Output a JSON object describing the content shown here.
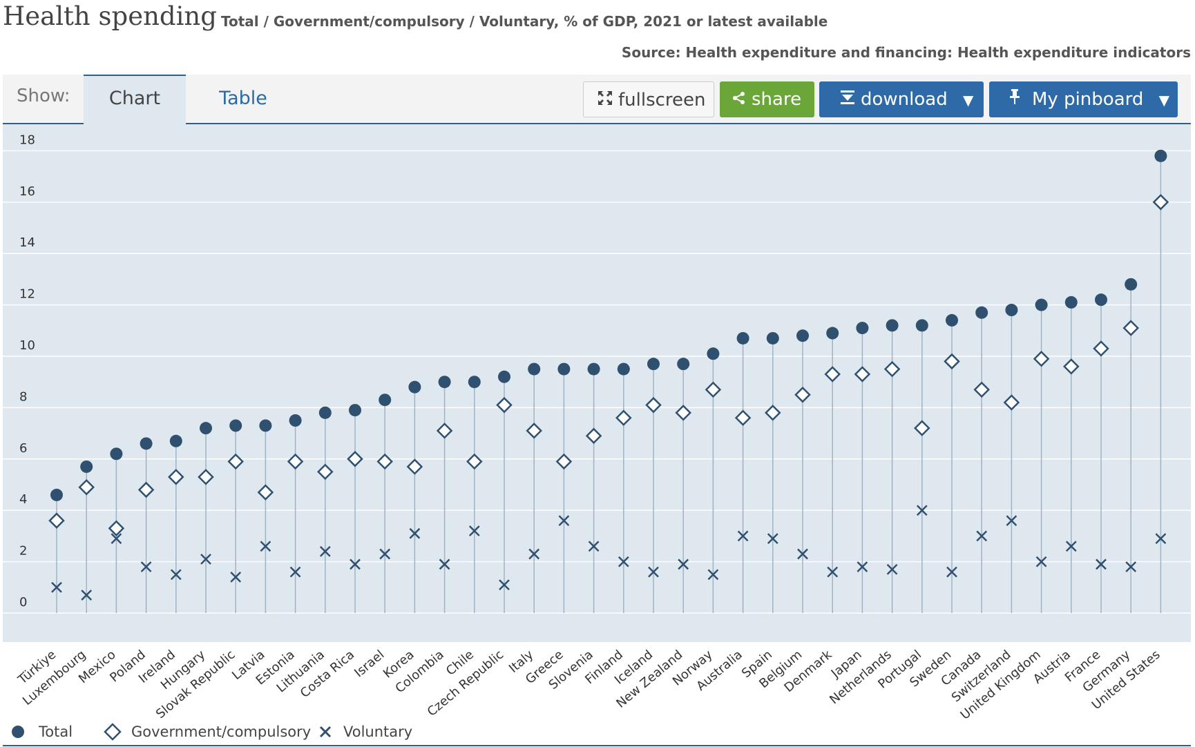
{
  "title": "Health spending",
  "subtitle": "Total / Government/compulsory / Voluntary, % of GDP, 2021 or latest available",
  "source": "Source: Health expenditure and financing: Health expenditure indicators",
  "toolbar": {
    "show_label": "Show:",
    "tab_chart": "Chart",
    "tab_table": "Table",
    "fullscreen_label": "fullscreen",
    "share_label": "share",
    "download_label": "download",
    "pinboard_label": "My pinboard",
    "dropdown_arrow": "▼",
    "icons": {
      "fullscreen": "expand-icon",
      "share": "share-icon",
      "download": "download-icon",
      "pinboard": "pin-icon"
    }
  },
  "legend": {
    "total": "Total",
    "government": "Government/compulsory",
    "voluntary": "Voluntary"
  },
  "colors": {
    "marker": "#2f506f",
    "plot_bg": "#dfe7ef",
    "gridline": "#ffffff",
    "connector": "#9fb3c5",
    "share_btn": "#6aa638",
    "primary_btn": "#2e6aa8"
  },
  "chart_data": {
    "type": "scatter",
    "ylim": [
      0,
      18
    ],
    "yticks": [
      0,
      2,
      4,
      6,
      8,
      10,
      12,
      14,
      16,
      18
    ],
    "grid": true,
    "legend_position": "bottom-left",
    "categories": [
      "Türkiye",
      "Luxembourg",
      "Mexico",
      "Poland",
      "Ireland",
      "Hungary",
      "Slovak Republic",
      "Latvia",
      "Estonia",
      "Lithuania",
      "Costa Rica",
      "Israel",
      "Korea",
      "Colombia",
      "Chile",
      "Czech Republic",
      "Italy",
      "Greece",
      "Slovenia",
      "Finland",
      "Iceland",
      "New Zealand",
      "Norway",
      "Australia",
      "Spain",
      "Belgium",
      "Denmark",
      "Japan",
      "Netherlands",
      "Portugal",
      "Sweden",
      "Canada",
      "Switzerland",
      "United Kingdom",
      "Austria",
      "France",
      "Germany",
      "United States"
    ],
    "series": [
      {
        "name": "Total",
        "marker": "circle",
        "values": [
          4.6,
          5.7,
          6.2,
          6.6,
          6.7,
          7.2,
          7.3,
          7.3,
          7.5,
          7.8,
          7.9,
          8.3,
          8.8,
          9.0,
          9.0,
          9.2,
          9.5,
          9.5,
          9.5,
          9.5,
          9.7,
          9.7,
          10.1,
          10.7,
          10.7,
          10.8,
          10.9,
          11.1,
          11.2,
          11.2,
          11.4,
          11.7,
          11.8,
          12.0,
          12.1,
          12.2,
          12.8,
          17.8
        ]
      },
      {
        "name": "Government/compulsory",
        "marker": "diamond",
        "values": [
          3.6,
          4.9,
          3.3,
          4.8,
          5.3,
          5.3,
          5.9,
          4.7,
          5.9,
          5.5,
          6.0,
          5.9,
          5.7,
          7.1,
          5.9,
          8.1,
          7.1,
          5.9,
          6.9,
          7.6,
          8.1,
          7.8,
          8.7,
          7.6,
          7.8,
          8.5,
          9.3,
          9.3,
          9.5,
          7.2,
          9.8,
          8.7,
          8.2,
          9.9,
          9.6,
          10.3,
          11.1,
          16.0
        ]
      },
      {
        "name": "Voluntary",
        "marker": "x",
        "values": [
          1.0,
          0.7,
          2.9,
          1.8,
          1.5,
          2.1,
          1.4,
          2.6,
          1.6,
          2.4,
          1.9,
          2.3,
          3.1,
          1.9,
          3.2,
          1.1,
          2.3,
          3.6,
          2.6,
          2.0,
          1.6,
          1.9,
          1.5,
          3.0,
          2.9,
          2.3,
          1.6,
          1.8,
          1.7,
          4.0,
          1.6,
          3.0,
          3.6,
          2.0,
          2.6,
          1.9,
          1.8,
          2.9
        ]
      }
    ]
  }
}
